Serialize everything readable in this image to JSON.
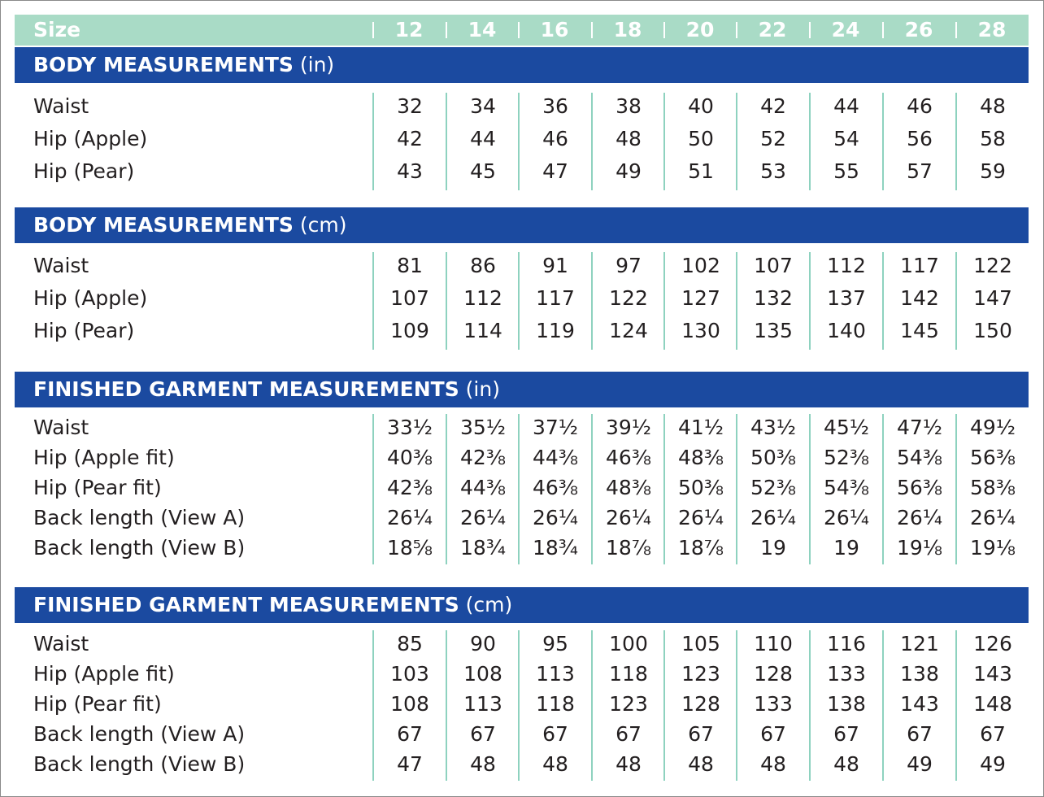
{
  "size_header": {
    "label": "Size",
    "sizes": [
      "12",
      "14",
      "16",
      "18",
      "20",
      "22",
      "24",
      "26",
      "28"
    ]
  },
  "colors": {
    "size_header_bg": "#a9dbc6",
    "section_bar_bg": "#1b4aa0",
    "column_divider": "#8ed2bf"
  },
  "sections": [
    {
      "title": "BODY MEASUREMENTS",
      "unit": "(in)",
      "rows": [
        {
          "label": "Waist",
          "values": [
            "32",
            "34",
            "36",
            "38",
            "40",
            "42",
            "44",
            "46",
            "48"
          ]
        },
        {
          "label": "Hip (Apple)",
          "values": [
            "42",
            "44",
            "46",
            "48",
            "50",
            "52",
            "54",
            "56",
            "58"
          ]
        },
        {
          "label": "Hip (Pear)",
          "values": [
            "43",
            "45",
            "47",
            "49",
            "51",
            "53",
            "55",
            "57",
            "59"
          ]
        }
      ]
    },
    {
      "title": "BODY MEASUREMENTS",
      "unit": "(cm)",
      "rows": [
        {
          "label": "Waist",
          "values": [
            "81",
            "86",
            "91",
            "97",
            "102",
            "107",
            "112",
            "117",
            "122"
          ]
        },
        {
          "label": "Hip (Apple)",
          "values": [
            "107",
            "112",
            "117",
            "122",
            "127",
            "132",
            "137",
            "142",
            "147"
          ]
        },
        {
          "label": "Hip (Pear)",
          "values": [
            "109",
            "114",
            "119",
            "124",
            "130",
            "135",
            "140",
            "145",
            "150"
          ]
        }
      ]
    },
    {
      "title": "FINISHED GARMENT MEASUREMENTS",
      "unit": "(in)",
      "rows": [
        {
          "label": "Waist",
          "values": [
            "33½",
            "35½",
            "37½",
            "39½",
            "41½",
            "43½",
            "45½",
            "47½",
            "49½"
          ]
        },
        {
          "label": "Hip (Apple fit)",
          "values": [
            "40⅜",
            "42⅜",
            "44⅜",
            "46⅜",
            "48⅜",
            "50⅜",
            "52⅜",
            "54⅜",
            "56⅜"
          ]
        },
        {
          "label": "Hip (Pear fit)",
          "values": [
            "42⅜",
            "44⅜",
            "46⅜",
            "48⅜",
            "50⅜",
            "52⅜",
            "54⅜",
            "56⅜",
            "58⅜"
          ]
        },
        {
          "label": "Back length (View A)",
          "values": [
            "26¼",
            "26¼",
            "26¼",
            "26¼",
            "26¼",
            "26¼",
            "26¼",
            "26¼",
            "26¼"
          ]
        },
        {
          "label": "Back length (View B)",
          "values": [
            "18⅝",
            "18¾",
            "18¾",
            "18⅞",
            "18⅞",
            "19",
            "19",
            "19⅛",
            "19⅛"
          ]
        }
      ]
    },
    {
      "title": "FINISHED GARMENT MEASUREMENTS",
      "unit": "(cm)",
      "rows": [
        {
          "label": "Waist",
          "values": [
            "85",
            "90",
            "95",
            "100",
            "105",
            "110",
            "116",
            "121",
            "126"
          ]
        },
        {
          "label": "Hip (Apple fit)",
          "values": [
            "103",
            "108",
            "113",
            "118",
            "123",
            "128",
            "133",
            "138",
            "143"
          ]
        },
        {
          "label": "Hip (Pear fit)",
          "values": [
            "108",
            "113",
            "118",
            "123",
            "128",
            "133",
            "138",
            "143",
            "148"
          ]
        },
        {
          "label": "Back length (View A)",
          "values": [
            "67",
            "67",
            "67",
            "67",
            "67",
            "67",
            "67",
            "67",
            "67"
          ]
        },
        {
          "label": "Back length (View B)",
          "values": [
            "47",
            "48",
            "48",
            "48",
            "48",
            "48",
            "48",
            "49",
            "49"
          ]
        }
      ]
    }
  ]
}
